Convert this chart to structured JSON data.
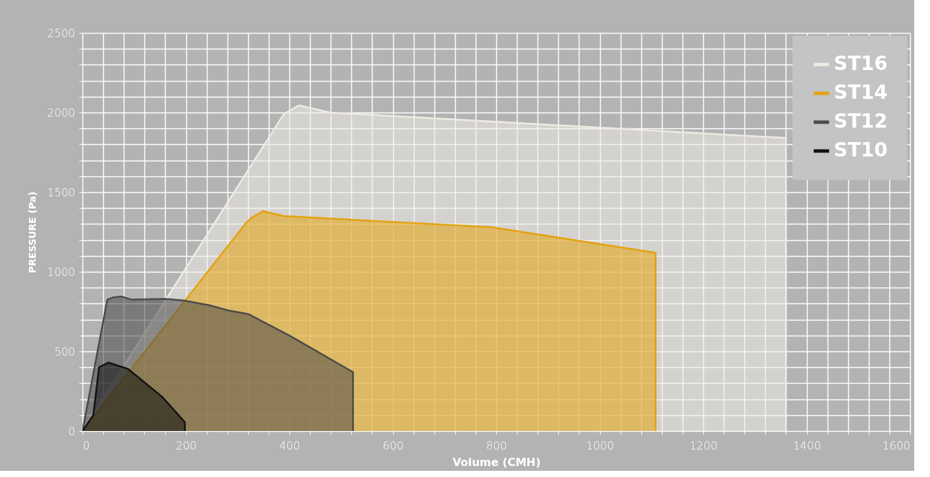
{
  "chart_data": {
    "type": "area",
    "xlabel": "Volume (CMH)",
    "ylabel": "PRESSURE (Pa)",
    "xlim": [
      0,
      1600
    ],
    "ylim": [
      0,
      2500
    ],
    "xticks": [
      0,
      {
        "value": 40,
        "label": null
      },
      {
        "value": 80,
        "label": null
      },
      {
        "value": 120,
        "label": null
      },
      {
        "value": 160,
        "label": null
      },
      200,
      {
        "value": 240,
        "label": null
      },
      {
        "value": 280,
        "label": null
      },
      {
        "value": 320,
        "label": null
      },
      {
        "value": 360,
        "label": null
      },
      400,
      {
        "value": 440,
        "label": null
      },
      {
        "value": 480,
        "label": null
      },
      {
        "value": 520,
        "label": null
      },
      {
        "value": 560,
        "label": null
      },
      600,
      {
        "value": 640,
        "label": null
      },
      {
        "value": 680,
        "label": null
      },
      {
        "value": 720,
        "label": null
      },
      {
        "value": 760,
        "label": null
      },
      800,
      {
        "value": 840,
        "label": null
      },
      {
        "value": 880,
        "label": null
      },
      {
        "value": 920,
        "label": null
      },
      {
        "value": 960,
        "label": null
      },
      1000,
      {
        "value": 1040,
        "label": null
      },
      {
        "value": 1080,
        "label": null
      },
      {
        "value": 1120,
        "label": null
      },
      {
        "value": 1160,
        "label": null
      },
      1200,
      {
        "value": 1240,
        "label": null
      },
      {
        "value": 1280,
        "label": null
      },
      {
        "value": 1320,
        "label": null
      },
      {
        "value": 1360,
        "label": null
      },
      1400,
      {
        "value": 1440,
        "label": null
      },
      {
        "value": 1480,
        "label": null
      },
      {
        "value": 1520,
        "label": null
      },
      {
        "value": 1560,
        "label": null
      },
      1600
    ],
    "yticks": [
      0,
      {
        "value": 100,
        "label": null
      },
      {
        "value": 200,
        "label": null
      },
      {
        "value": 300,
        "label": null
      },
      {
        "value": 400,
        "label": null
      },
      500,
      {
        "value": 600,
        "label": null
      },
      {
        "value": 700,
        "label": null
      },
      {
        "value": 800,
        "label": null
      },
      {
        "value": 900,
        "label": null
      },
      1000,
      {
        "value": 1100,
        "label": null
      },
      {
        "value": 1200,
        "label": null
      },
      {
        "value": 1300,
        "label": null
      },
      {
        "value": 1400,
        "label": null
      },
      1500,
      {
        "value": 1600,
        "label": null
      },
      {
        "value": 1700,
        "label": null
      },
      {
        "value": 1800,
        "label": null
      },
      {
        "value": 1900,
        "label": null
      },
      2000,
      {
        "value": 2100,
        "label": null
      },
      {
        "value": 2200,
        "label": null
      },
      {
        "value": 2300,
        "label": null
      },
      {
        "value": 2400,
        "label": null
      },
      2500
    ],
    "grid": true,
    "legend": "top right",
    "series": [
      {
        "name": "ST16",
        "color": "#eeebe4",
        "x": [
          0,
          389,
          418,
          479,
          1360,
          1360
        ],
        "values": [
          0,
          1990,
          2045,
          2000,
          1840,
          0
        ]
      },
      {
        "name": "ST14",
        "color": "#e3a20f",
        "x": [
          0,
          317,
          327,
          349,
          389,
          790,
          840,
          1108,
          1108
        ],
        "values": [
          0,
          1310,
          1340,
          1380,
          1350,
          1280,
          1255,
          1120,
          0
        ]
      },
      {
        "name": "ST12",
        "color": "#4a4a4a",
        "x": [
          0,
          48,
          60,
          75,
          95,
          160,
          195,
          245,
          285,
          320,
          400,
          523,
          523
        ],
        "values": [
          0,
          825,
          840,
          845,
          825,
          830,
          820,
          790,
          755,
          735,
          600,
          370,
          0
        ]
      },
      {
        "name": "ST10",
        "color": "#111111",
        "x": [
          0,
          21,
          32,
          50,
          88,
          154,
          198,
          198
        ],
        "values": [
          0,
          100,
          400,
          430,
          390,
          215,
          55,
          0
        ]
      }
    ]
  }
}
